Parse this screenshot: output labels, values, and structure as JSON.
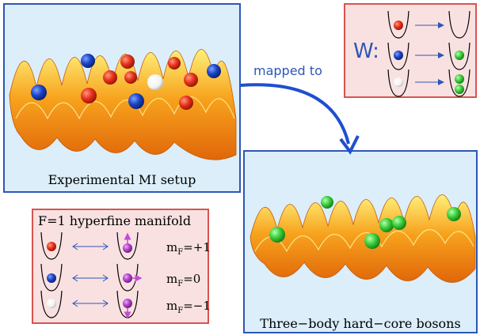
{
  "mi_panel": {
    "caption": "Experimental MI setup"
  },
  "hc_panel": {
    "caption": "Three−body hard−core bosons"
  },
  "map_arrow": {
    "label": "mapped to"
  },
  "w_panel": {
    "label": "W:"
  },
  "f_panel": {
    "title": "F=1 hyperfine manifold",
    "rows": [
      {
        "m_prefix": "m",
        "m_sub": "F",
        "m_value": "=+1"
      },
      {
        "m_prefix": "m",
        "m_sub": "F",
        "m_value": "=0"
      },
      {
        "m_prefix": "m",
        "m_sub": "F",
        "m_value": "=−1"
      }
    ]
  },
  "colors": {
    "panel_blue": "#dbeefa",
    "panel_pink": "#f9e1e1",
    "border_blue": "#2d57b5",
    "border_red": "#d9534f",
    "atom_red": "#e8331c",
    "atom_blue": "#1c46c9",
    "atom_white": "#ffffff",
    "atom_green": "#3ccf3c",
    "atom_purple": "#b044c8",
    "lattice": "#f39a1c"
  }
}
